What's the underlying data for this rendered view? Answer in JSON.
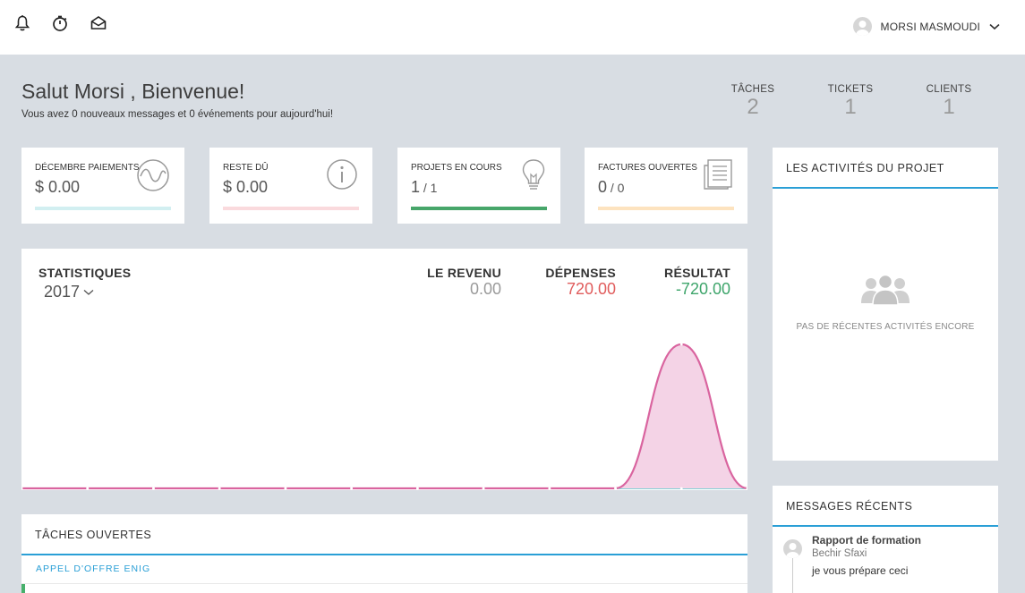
{
  "header": {
    "icons": [
      "bell-icon",
      "timer-icon",
      "inbox-icon"
    ],
    "user_name": "MORSI MASMOUDI"
  },
  "greeting": {
    "title": "Salut Morsi , Bienvenue!",
    "subtitle": "Vous avez 0 nouveaux messages et 0 événements pour aujourd'hui!"
  },
  "counters": [
    {
      "label": "TÂCHES",
      "value": "2"
    },
    {
      "label": "TICKETS",
      "value": "1"
    },
    {
      "label": "CLIENTS",
      "value": "1"
    }
  ],
  "cards": [
    {
      "label": "DÉCEMBRE PAIEMENTS",
      "value": "$ 0.00",
      "icon": "wave-icon",
      "bar_color": "#d2eff1",
      "bar_fill": 1
    },
    {
      "label": "RESTE DÛ",
      "value": "$ 0.00",
      "icon": "info-icon",
      "bar_color": "#fadadd",
      "bar_fill": 1
    },
    {
      "label": "PROJETS EN COURS",
      "value_main": "1",
      "value_sep": " / 1",
      "icon": "lightbulb-icon",
      "bar_color": "#47a66a",
      "bar_fill": 1
    },
    {
      "label": "FACTURES OUVERTES",
      "value_main": "0",
      "value_sep": " / 0",
      "icon": "document-icon",
      "bar_color": "#fde3bf",
      "bar_fill": 1
    }
  ],
  "stats": {
    "title": "STATISTIQUES",
    "year": "2017",
    "revenue_label": "LE REVENU",
    "revenue_value": "0.00",
    "expenses_label": "DÉPENSES",
    "expenses_value": "720.00",
    "result_label": "RÉSULTAT",
    "result_value": "-720.00",
    "colors": {
      "revenue": "#9a9a9a",
      "expenses": "#e05c5c",
      "result": "#3ea56b"
    }
  },
  "chart_data": {
    "type": "area",
    "x": [
      1,
      2,
      3,
      4,
      5,
      6,
      7,
      8,
      9,
      10,
      11,
      12
    ],
    "series": [
      {
        "values": [
          0,
          0,
          0,
          0,
          0,
          0,
          0,
          0,
          0,
          0,
          720,
          0
        ],
        "color": "#d9649f",
        "fill": "#f4d3e6"
      },
      {
        "values": [
          0,
          0,
          0,
          0,
          0,
          0,
          0,
          0,
          0,
          0,
          0,
          0
        ],
        "color": "#5fc1c9"
      }
    ],
    "ylim": [
      0,
      760
    ]
  },
  "tasks": {
    "title": "TÂCHES OUVERTES",
    "group": "APPEL D'OFFRE ENIG"
  },
  "activities": {
    "title": "LES ACTIVITÉS DU PROJET",
    "empty_icon": "users-icon",
    "empty_text": "PAS DE RÉCENTES ACTIVITÉS ENCORE"
  },
  "messages": {
    "title": "MESSAGES RÉCENTS",
    "items": [
      {
        "subject": "Rapport de formation",
        "from": "Bechir Sfaxi",
        "body": "je vous prépare ceci"
      }
    ]
  }
}
